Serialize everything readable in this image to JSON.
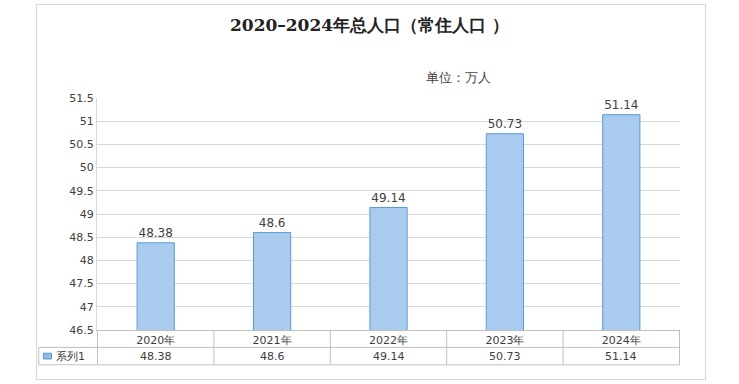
{
  "chart_data": {
    "type": "bar",
    "title": "2020–2024年总人口（常住人口 ）",
    "subtitle": "单位：万人",
    "categories": [
      "2020年",
      "2021年",
      "2022年",
      "2023年",
      "2024年"
    ],
    "series": [
      {
        "name": "系列1",
        "color": "#5b9bd5",
        "values": [
          48.38,
          48.6,
          49.14,
          50.73,
          51.14
        ]
      }
    ],
    "ylim": [
      46.5,
      51.5
    ],
    "yticks": [
      46.5,
      47,
      47.5,
      48,
      48.5,
      49,
      49.5,
      50,
      50.5,
      51,
      51.5
    ],
    "grid": true,
    "data_labels": true
  }
}
